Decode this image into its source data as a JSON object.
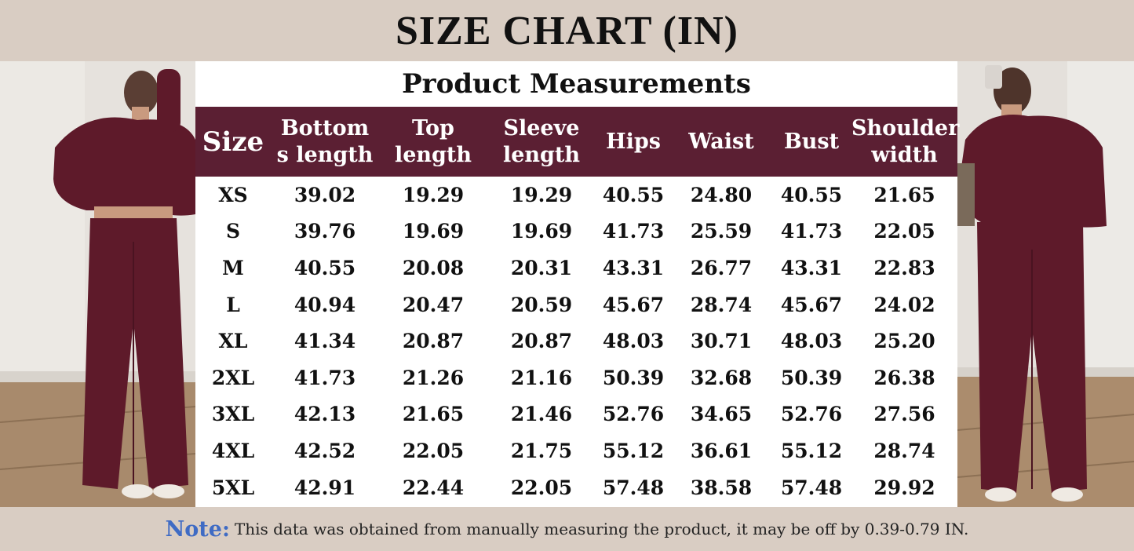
{
  "title": "SIZE CHART (IN)",
  "panel_title": "Product Measurements",
  "columns": [
    "Size",
    "Bottom\ns length",
    "Top\nlength",
    "Sleeve\nlength",
    "Hips",
    "Waist",
    "Bust",
    "Shoulder\nwidth"
  ],
  "rows": [
    [
      "XS",
      "39.02",
      "19.29",
      "19.29",
      "40.55",
      "24.80",
      "40.55",
      "21.65"
    ],
    [
      "S",
      "39.76",
      "19.69",
      "19.69",
      "41.73",
      "25.59",
      "41.73",
      "22.05"
    ],
    [
      "M",
      "40.55",
      "20.08",
      "20.31",
      "43.31",
      "26.77",
      "43.31",
      "22.83"
    ],
    [
      "L",
      "40.94",
      "20.47",
      "20.59",
      "45.67",
      "28.74",
      "45.67",
      "24.02"
    ],
    [
      "XL",
      "41.34",
      "20.87",
      "20.87",
      "48.03",
      "30.71",
      "48.03",
      "25.20"
    ],
    [
      "2XL",
      "41.73",
      "21.26",
      "21.16",
      "50.39",
      "32.68",
      "50.39",
      "26.38"
    ],
    [
      "3XL",
      "42.13",
      "21.65",
      "21.46",
      "52.76",
      "34.65",
      "52.76",
      "27.56"
    ],
    [
      "4XL",
      "42.52",
      "22.05",
      "21.75",
      "55.12",
      "36.61",
      "55.12",
      "28.74"
    ],
    [
      "5XL",
      "42.91",
      "22.44",
      "22.05",
      "57.48",
      "38.58",
      "57.48",
      "29.92"
    ]
  ],
  "note": {
    "label": "Note:",
    "text": "This data was obtained from manually measuring the product, it may be off by 0.39-0.79 IN."
  },
  "colors": {
    "background": "#d9cdc3",
    "header_fill": "#5b1f33",
    "garment": "#5e1a2a",
    "note_label": "#3f6bc4"
  }
}
